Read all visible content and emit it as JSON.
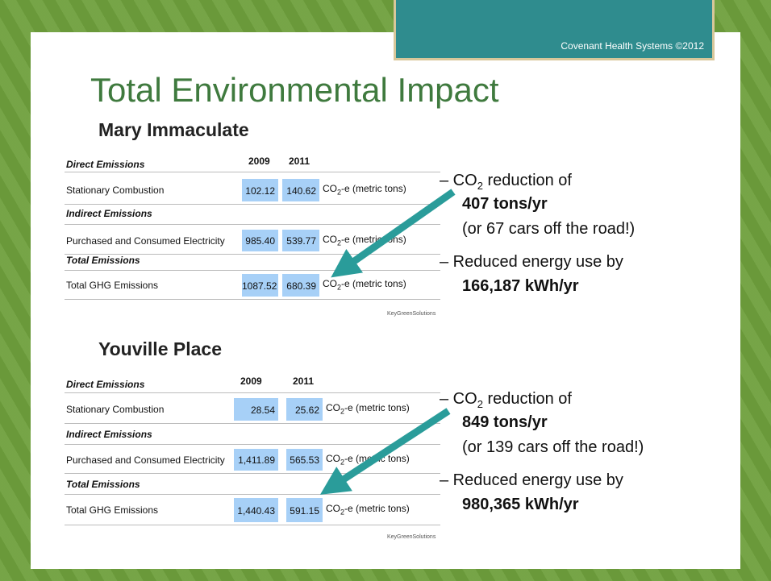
{
  "header": {
    "tab": "Covenant Health Systems ©2012"
  },
  "title": "Total Environmental Impact",
  "sections": [
    {
      "name": "Mary Immaculate",
      "table": {
        "columns": [
          "2009",
          "2011"
        ],
        "groups": [
          {
            "heading": "Direct Emissions",
            "label": "Stationary Combustion",
            "values": [
              "102.12",
              "140.62"
            ],
            "unit": [
              "CO",
              "2",
              "-e (metric tons)"
            ]
          },
          {
            "heading": "Indirect Emissions",
            "label": "Purchased and Consumed Electricity",
            "values": [
              "985.40",
              "539.77"
            ],
            "unit": [
              "CO",
              "2",
              "-e (metric tons)"
            ]
          },
          {
            "heading": "Total Emissions",
            "label": "Total GHG Emissions",
            "values": [
              "1087.52",
              "680.39"
            ],
            "unit": [
              "CO",
              "2",
              "-e (metric tons)"
            ]
          }
        ]
      },
      "logo": "KeyGreenSolutions",
      "co2_bullet": {
        "lead": "– CO",
        "sub": "2",
        "rest": " reduction of",
        "amount": "407 tons/yr",
        "note": "(or 67 cars off the road!)"
      },
      "energy_bullet": {
        "text": "– Reduced energy use by",
        "amount": "166,187 kWh/yr"
      }
    },
    {
      "name": "Youville Place",
      "table": {
        "columns": [
          "2009",
          "2011"
        ],
        "groups": [
          {
            "heading": "Direct Emissions",
            "label": "Stationary Combustion",
            "values": [
              "28.54",
              "25.62"
            ],
            "unit": [
              "CO",
              "2",
              "-e (metric tons)"
            ]
          },
          {
            "heading": "Indirect Emissions",
            "label": "Purchased and Consumed Electricity",
            "values": [
              "1,411.89",
              "565.53"
            ],
            "unit": [
              "CO",
              "2",
              "-e (metric tons)"
            ]
          },
          {
            "heading": "Total Emissions",
            "label": "Total GHG Emissions",
            "values": [
              "1,440.43",
              "591.15"
            ],
            "unit": [
              "CO",
              "2",
              "-e (metric tons)"
            ]
          }
        ]
      },
      "logo": "KeyGreenSolutions",
      "co2_bullet": {
        "lead": "– CO",
        "sub": "2",
        "rest": " reduction of",
        "amount": "849 tons/yr",
        "note": "(or 139 cars off the road!)"
      },
      "energy_bullet": {
        "text": "– Reduced energy use by",
        "amount": "980,365 kWh/yr"
      }
    }
  ]
}
